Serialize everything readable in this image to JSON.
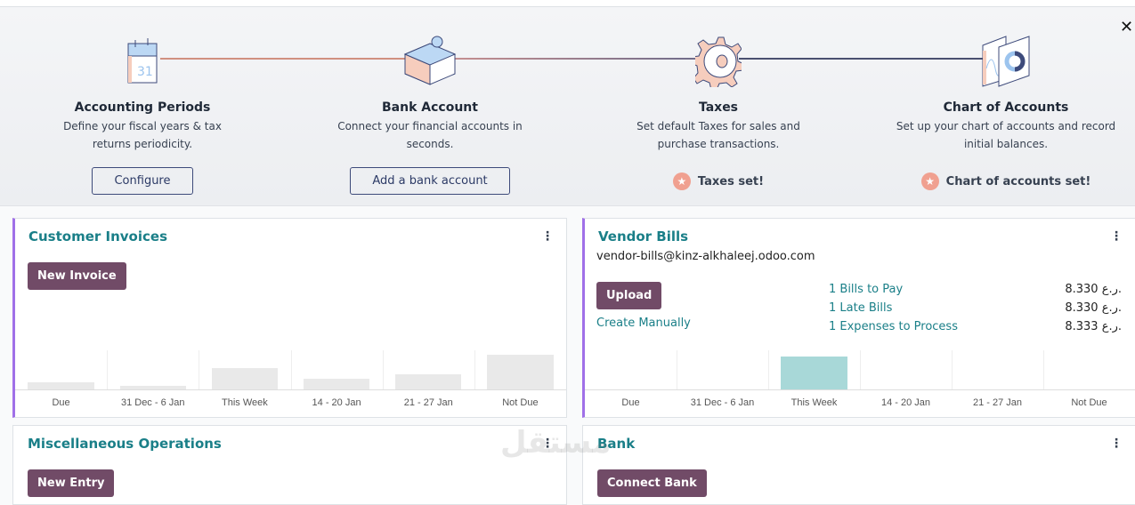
{
  "onboarding": {
    "close_icon": "close-icon",
    "steps": [
      {
        "icon": "calendar-icon",
        "title": "Accounting Periods",
        "desc": "Define your fiscal years & tax returns periodicity.",
        "button": "Configure"
      },
      {
        "icon": "puzzle-icon",
        "title": "Bank Account",
        "desc": "Connect your financial accounts in seconds.",
        "button": "Add a bank account"
      },
      {
        "icon": "gear-icon",
        "title": "Taxes",
        "desc": "Set default Taxes for sales and purchase transactions.",
        "done": "Taxes set!"
      },
      {
        "icon": "chart-icon",
        "title": "Chart of Accounts",
        "desc": "Set up your chart of accounts and record initial balances.",
        "done": "Chart of accounts set!"
      }
    ],
    "colors": {
      "done_star": "#f0a090",
      "button_border": "#3d4a7a"
    }
  },
  "customer_invoices": {
    "title": "Customer Invoices",
    "button": "New Invoice"
  },
  "vendor_bills": {
    "title": "Vendor Bills",
    "email": "vendor-bills@kinz-alkhaleej.odoo.com",
    "button": "Upload",
    "create_manually": "Create Manually",
    "stats": [
      {
        "label": "1 Bills to Pay",
        "amount": "8.330 ر.ع."
      },
      {
        "label": "1 Late Bills",
        "amount": "8.330 ر.ع."
      },
      {
        "label": "1 Expenses to Process",
        "amount": "8.333 ر.ع."
      }
    ]
  },
  "misc": {
    "title": "Miscellaneous Operations",
    "button": "New Entry"
  },
  "bank": {
    "title": "Bank",
    "button": "Connect Bank"
  },
  "chart_data": [
    {
      "type": "bar",
      "sample": true,
      "categories": [
        "Due",
        "31 Dec - 6 Jan",
        "This Week",
        "14 - 20 Jan",
        "21 - 27 Jan",
        "Not Due"
      ],
      "values": [
        8,
        4,
        24,
        12,
        17,
        39
      ],
      "color": "#e9e9e9"
    },
    {
      "type": "bar",
      "categories": [
        "Due",
        "31 Dec - 6 Jan",
        "This Week",
        "14 - 20 Jan",
        "21 - 27 Jan",
        "Not Due"
      ],
      "values": [
        0,
        0,
        8.33,
        0,
        0,
        0
      ],
      "color": "#a8d8d8"
    }
  ],
  "colors": {
    "brand": "#714b67",
    "title": "#1a7f88",
    "accent_border": "#a070e8"
  },
  "watermark": "مستقل mostaql.com"
}
